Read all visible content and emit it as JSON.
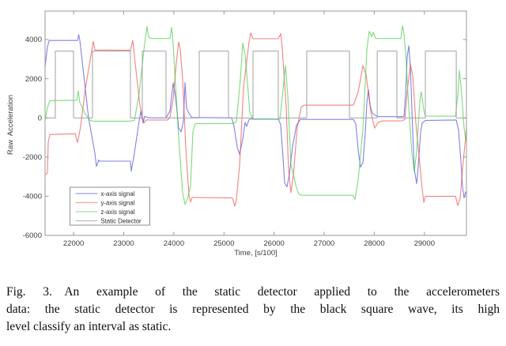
{
  "page": {
    "background": "#ffffff"
  },
  "figure": {
    "caption_lines": [
      "Fig. 3.  An example of the static detector applied to the accelerometers",
      "data: the static detector is represented by the black square wave, its high",
      "level classify an interval as static."
    ]
  },
  "chart_data": {
    "type": "line",
    "title": "",
    "xlabel": "Time, [s/100]",
    "ylabel": "Raw  Acceleration",
    "xlim": [
      21430,
      29840
    ],
    "ylim": [
      -6000,
      5450
    ],
    "xticks": [
      22000,
      23000,
      24000,
      25000,
      26000,
      27000,
      28000,
      29000
    ],
    "yticks": [
      -6000,
      -4000,
      -2000,
      0,
      2000,
      4000
    ],
    "grid": false,
    "axis_color": "#9a9a9a",
    "tick_label_color": "#3c3c3c",
    "legend": {
      "position": "southwest",
      "border_color": "#8f8f8f",
      "entries": [
        {
          "label": "x-axis signal",
          "swatch": "#9d9df0"
        },
        {
          "label": "y-axis signal",
          "swatch": "#f2a2a2"
        },
        {
          "label": "z-axis signal",
          "swatch": "#a2e69d"
        },
        {
          "label": "Static Detector",
          "swatch": "#bdbdbd"
        }
      ]
    },
    "static_detector": {
      "high_level": 3400,
      "low_level": 0,
      "high_intervals": [
        [
          21635,
          21998
        ],
        [
          22377,
          23134
        ],
        [
          23371,
          23844
        ],
        [
          24507,
          25091
        ],
        [
          25580,
          26085
        ],
        [
          26653,
          27505
        ],
        [
          28058,
          28452
        ],
        [
          29020,
          29636
        ]
      ]
    },
    "series": [
      {
        "name": "x-axis signal",
        "color": "#4646e0",
        "opacity": 0.68,
        "width": 1.1,
        "points": [
          [
            21430,
            2600
          ],
          [
            21475,
            3600
          ],
          [
            21510,
            3950
          ],
          [
            22080,
            3950
          ],
          [
            22100,
            4250
          ],
          [
            22125,
            3950
          ],
          [
            22298,
            0
          ],
          [
            22424,
            -1800
          ],
          [
            22456,
            -2480
          ],
          [
            22503,
            -2150
          ],
          [
            22519,
            -2210
          ],
          [
            23134,
            -2210
          ],
          [
            23150,
            -2720
          ],
          [
            23213,
            -1800
          ],
          [
            23308,
            -150
          ],
          [
            23339,
            320
          ],
          [
            23387,
            -260
          ],
          [
            23418,
            80
          ],
          [
            23497,
            0
          ],
          [
            23844,
            0
          ],
          [
            23923,
            350
          ],
          [
            23986,
            1780
          ],
          [
            24034,
            1080
          ],
          [
            24097,
            -520
          ],
          [
            24144,
            -720
          ],
          [
            24192,
            -180
          ],
          [
            24223,
            1800
          ],
          [
            24255,
            480
          ],
          [
            24318,
            160
          ],
          [
            24365,
            20
          ],
          [
            25154,
            0
          ],
          [
            25201,
            -420
          ],
          [
            25265,
            -1520
          ],
          [
            25312,
            -1860
          ],
          [
            25375,
            -1080
          ],
          [
            25422,
            -240
          ],
          [
            25454,
            -440
          ],
          [
            25501,
            -90
          ],
          [
            25533,
            -60
          ],
          [
            26085,
            -60
          ],
          [
            26132,
            -360
          ],
          [
            26180,
            -2050
          ],
          [
            26211,
            -3320
          ],
          [
            26258,
            -3520
          ],
          [
            26306,
            -2880
          ],
          [
            26369,
            -1480
          ],
          [
            26448,
            -380
          ],
          [
            26527,
            -80
          ],
          [
            27584,
            -80
          ],
          [
            27632,
            -320
          ],
          [
            27679,
            -1620
          ],
          [
            27726,
            -2520
          ],
          [
            27774,
            -2280
          ],
          [
            27821,
            -780
          ],
          [
            27853,
            820
          ],
          [
            27884,
            1430
          ],
          [
            27916,
            620
          ],
          [
            27963,
            230
          ],
          [
            28026,
            120
          ],
          [
            28089,
            60
          ],
          [
            28547,
            60
          ],
          [
            28594,
            80
          ],
          [
            28626,
            1250
          ],
          [
            28657,
            3120
          ],
          [
            28689,
            3680
          ],
          [
            28721,
            2550
          ],
          [
            28768,
            -820
          ],
          [
            28799,
            -2620
          ],
          [
            28846,
            -3360
          ],
          [
            28878,
            -2480
          ],
          [
            28925,
            -720
          ],
          [
            28957,
            -260
          ],
          [
            29020,
            -130
          ],
          [
            29636,
            -110
          ],
          [
            29683,
            -620
          ],
          [
            29730,
            -2250
          ],
          [
            29762,
            -3550
          ],
          [
            29793,
            -4080
          ],
          [
            29825,
            -3780
          ],
          [
            29840,
            -3900
          ]
        ]
      },
      {
        "name": "y-axis signal",
        "color": "#ee4747",
        "opacity": 0.68,
        "width": 1.1,
        "points": [
          [
            21430,
            -2920
          ],
          [
            21477,
            -2800
          ],
          [
            21493,
            -1250
          ],
          [
            21525,
            -850
          ],
          [
            22030,
            -810
          ],
          [
            22077,
            -1260
          ],
          [
            22109,
            -880
          ],
          [
            22140,
            -420
          ],
          [
            22235,
            1500
          ],
          [
            22361,
            3420
          ],
          [
            22393,
            3900
          ],
          [
            22424,
            3460
          ],
          [
            23134,
            3450
          ],
          [
            23182,
            3960
          ],
          [
            23213,
            3150
          ],
          [
            23324,
            620
          ],
          [
            23402,
            -260
          ],
          [
            23450,
            -110
          ],
          [
            23876,
            -110
          ],
          [
            23923,
            30
          ],
          [
            23986,
            950
          ],
          [
            24049,
            2820
          ],
          [
            24097,
            3870
          ],
          [
            24128,
            3480
          ],
          [
            24176,
            1950
          ],
          [
            24239,
            -1550
          ],
          [
            24302,
            -3920
          ],
          [
            24334,
            -4300
          ],
          [
            24365,
            -4060
          ],
          [
            25170,
            -4090
          ],
          [
            25217,
            -4510
          ],
          [
            25249,
            -4180
          ],
          [
            25312,
            -2450
          ],
          [
            25391,
            1550
          ],
          [
            25501,
            3880
          ],
          [
            25533,
            4330
          ],
          [
            25580,
            4040
          ],
          [
            26085,
            4040
          ],
          [
            26132,
            4300
          ],
          [
            26164,
            3550
          ],
          [
            26243,
            550
          ],
          [
            26290,
            -2650
          ],
          [
            26337,
            -3820
          ],
          [
            26385,
            -2950
          ],
          [
            26464,
            -480
          ],
          [
            26543,
            560
          ],
          [
            26606,
            650
          ],
          [
            27584,
            650
          ],
          [
            27679,
            1320
          ],
          [
            27774,
            2670
          ],
          [
            27837,
            2180
          ],
          [
            27932,
            280
          ],
          [
            28010,
            -520
          ],
          [
            28074,
            -240
          ],
          [
            28152,
            -160
          ],
          [
            28547,
            -150
          ],
          [
            28610,
            -90
          ],
          [
            28657,
            1320
          ],
          [
            28721,
            2720
          ],
          [
            28768,
            2150
          ],
          [
            28831,
            -320
          ],
          [
            28910,
            -2420
          ],
          [
            28957,
            -3620
          ],
          [
            28989,
            -4320
          ],
          [
            29020,
            -4010
          ],
          [
            29620,
            -4000
          ],
          [
            29667,
            -4470
          ],
          [
            29715,
            -4080
          ],
          [
            29762,
            -2580
          ],
          [
            29825,
            -980
          ],
          [
            29840,
            -480
          ]
        ]
      },
      {
        "name": "z-axis signal",
        "color": "#3ecc3e",
        "opacity": 0.68,
        "width": 1.1,
        "points": [
          [
            21430,
            -120
          ],
          [
            21477,
            520
          ],
          [
            21525,
            880
          ],
          [
            22061,
            900
          ],
          [
            22093,
            1360
          ],
          [
            22124,
            780
          ],
          [
            22235,
            180
          ],
          [
            22329,
            -120
          ],
          [
            22393,
            -170
          ],
          [
            23103,
            -170
          ],
          [
            23213,
            -130
          ],
          [
            23308,
            1250
          ],
          [
            23418,
            3820
          ],
          [
            23466,
            4660
          ],
          [
            23497,
            4120
          ],
          [
            23529,
            4050
          ],
          [
            23923,
            4050
          ],
          [
            23955,
            4620
          ],
          [
            23986,
            3780
          ],
          [
            24097,
            -1050
          ],
          [
            24176,
            -3820
          ],
          [
            24223,
            -4420
          ],
          [
            24271,
            -4140
          ],
          [
            24334,
            -3480
          ],
          [
            24381,
            -720
          ],
          [
            24428,
            -300
          ],
          [
            25186,
            -290
          ],
          [
            25249,
            -180
          ],
          [
            25328,
            1950
          ],
          [
            25375,
            3820
          ],
          [
            25422,
            3250
          ],
          [
            25517,
            280
          ],
          [
            25580,
            -70
          ],
          [
            26117,
            -70
          ],
          [
            26180,
            1450
          ],
          [
            26227,
            2680
          ],
          [
            26274,
            1150
          ],
          [
            26337,
            -2420
          ],
          [
            26385,
            -2880
          ],
          [
            26432,
            -3420
          ],
          [
            26495,
            -3900
          ],
          [
            26558,
            -3950
          ],
          [
            27568,
            -3950
          ],
          [
            27616,
            -4160
          ],
          [
            27679,
            -3180
          ],
          [
            27774,
            -560
          ],
          [
            27853,
            3520
          ],
          [
            27900,
            4420
          ],
          [
            27947,
            4140
          ],
          [
            27979,
            4360
          ],
          [
            28026,
            4050
          ],
          [
            28531,
            4050
          ],
          [
            28563,
            4700
          ],
          [
            28594,
            4280
          ],
          [
            28626,
            3280
          ],
          [
            28689,
            480
          ],
          [
            28752,
            -1820
          ],
          [
            28799,
            -2760
          ],
          [
            28846,
            -1680
          ],
          [
            28910,
            920
          ],
          [
            28941,
            1320
          ],
          [
            28989,
            380
          ],
          [
            29020,
            90
          ],
          [
            29620,
            80
          ],
          [
            29667,
            1150
          ],
          [
            29699,
            2420
          ],
          [
            29746,
            1180
          ],
          [
            29793,
            -520
          ],
          [
            29825,
            -1120
          ],
          [
            29840,
            -1220
          ]
        ]
      },
      {
        "name": "Static Detector",
        "color": "#9c9c9c",
        "opacity": 0.95,
        "width": 1,
        "square": true
      }
    ]
  }
}
